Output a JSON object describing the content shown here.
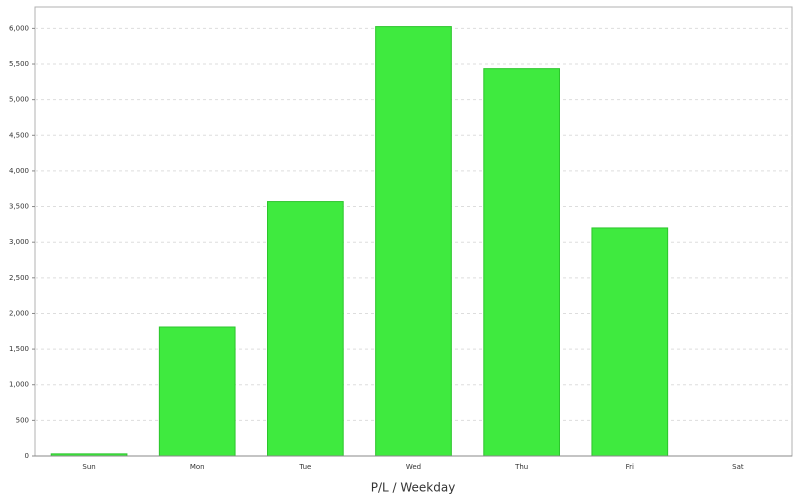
{
  "chart_data": {
    "type": "bar",
    "x_label": "P/L / Weekday",
    "categories": [
      "Sun",
      "Mon",
      "Tue",
      "Wed",
      "Thu",
      "Fri",
      "Sat"
    ],
    "values": [
      30,
      1810,
      3570,
      6025,
      5435,
      3200,
      0
    ],
    "color": "#3fea3f",
    "ylim": [
      0,
      6300
    ],
    "yticks": [
      0,
      500,
      {
        "value": 1000,
        "label": "1,000"
      },
      {
        "value": 1500,
        "label": "1,500"
      },
      {
        "value": 2000,
        "label": "2,000"
      },
      {
        "value": 2500,
        "label": "2,500"
      },
      {
        "value": 3000,
        "label": "3,000"
      },
      {
        "value": 3500,
        "label": "3,500"
      },
      {
        "value": 4000,
        "label": "4,000"
      },
      {
        "value": 4500,
        "label": "4,500"
      },
      {
        "value": 5000,
        "label": "5,000"
      },
      {
        "value": 5500,
        "label": "5,500"
      },
      {
        "value": 6000,
        "label": "6,000"
      }
    ],
    "grid": true
  }
}
